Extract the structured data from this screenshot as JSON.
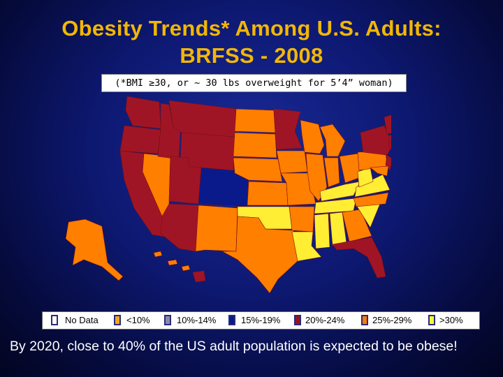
{
  "title": {
    "line1": "Obesity Trends* Among U.S. Adults:",
    "line2": "BRFSS - 2008"
  },
  "subtitle": "(*BMI ≥30, or ~ 30 lbs overweight for 5’4” woman)",
  "legend": [
    {
      "label": "No Data",
      "color": "#ffffff"
    },
    {
      "label": "<10%",
      "color": "#f5a623"
    },
    {
      "label": "10%-14%",
      "color": "#8a8aa8"
    },
    {
      "label": "15%-19%",
      "color": "#0a1a8a"
    },
    {
      "label": "20%-24%",
      "color": "#9e1020"
    },
    {
      "label": "25%-29%",
      "color": "#ff7a00"
    },
    {
      "label": ">30%",
      "color": "#ffff33"
    }
  ],
  "map": {
    "categories": {
      "15-19": "#0a1a8a",
      "20-24": "#a01525",
      "25-29": "#ff7f00",
      "30plus": "#ffee33"
    }
  },
  "footer": "By 2020, close to  40% of the US adult population is expected to be obese!"
}
